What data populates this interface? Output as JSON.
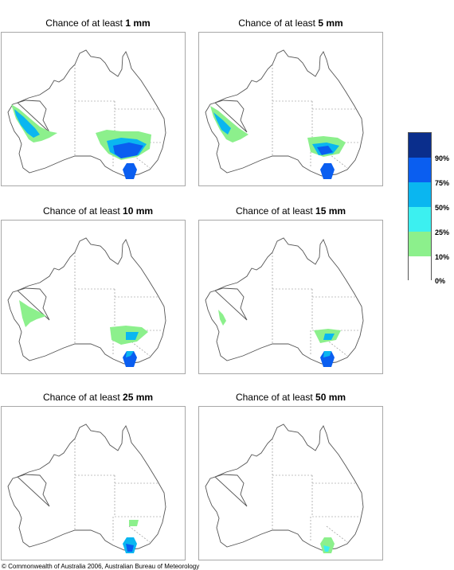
{
  "panels": [
    {
      "prefix": "Chance of at least ",
      "amount": "1 mm"
    },
    {
      "prefix": "Chance of at least ",
      "amount": "5 mm"
    },
    {
      "prefix": "Chance of at least ",
      "amount": "10 mm"
    },
    {
      "prefix": "Chance of at least ",
      "amount": "15 mm"
    },
    {
      "prefix": "Chance of at least ",
      "amount": "25 mm"
    },
    {
      "prefix": "Chance of at least ",
      "amount": "50 mm"
    }
  ],
  "legend": {
    "labels": [
      "90%",
      "75%",
      "50%",
      "25%",
      "10%",
      "0%"
    ],
    "colors": [
      "#0a2e8c",
      "#0a5ef0",
      "#0ab6f0",
      "#3cf0f0",
      "#8cf08c",
      "#ffffff"
    ]
  },
  "copyright": "© Commonwealth of Australia 2006, Australian Bureau of Meteorology"
}
